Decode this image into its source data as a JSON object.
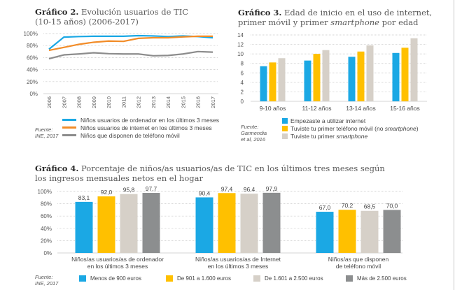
{
  "chart_data": [
    {
      "type": "line",
      "title_bold": "Gráfico 2.",
      "title": "Evolución usuarios de TIC (10-15 años) (2006-2017)",
      "title_line1": "Evolución usuarios de TIC",
      "title_line2": "(10-15 años) (2006-2017)",
      "x": [
        "2006",
        "2007",
        "2008",
        "2009",
        "2010",
        "2011",
        "2012",
        "2013",
        "2014",
        "2015",
        "2016",
        "2017"
      ],
      "yticks": [
        "0%",
        "20%",
        "40%",
        "60%",
        "80%",
        "100%"
      ],
      "ylim": [
        0,
        100
      ],
      "grid": true,
      "series": [
        {
          "name": "Niños usuarios de ordenador en los últimos 3 meses",
          "color": "#1ba8e4",
          "values": [
            74,
            94,
            95,
            95.5,
            95.5,
            95.5,
            96.5,
            96,
            95,
            96,
            95,
            93
          ]
        },
        {
          "name": "Niños usuarios de internet en los  últimos 3 meses",
          "color": "#f28c28",
          "values": [
            72,
            77,
            82,
            85.5,
            87.5,
            87,
            92,
            93,
            93,
            94.5,
            95.5,
            95.5
          ]
        },
        {
          "name": "Niños que disponen de teléfono móvil",
          "color": "#8c8c8c",
          "values": [
            58,
            64.5,
            66,
            68,
            66.5,
            66,
            66,
            63,
            63.5,
            66,
            70,
            69
          ]
        }
      ],
      "source": [
        "Fuente:",
        "INE, 2017"
      ]
    },
    {
      "type": "bar",
      "title_bold": "Gráfico 3.",
      "title": "Edad de inicio en el uso de internet, primer móvil y primer smartphone por edad",
      "title_line1": "Edad de inicio en el uso de internet,",
      "title_line2a": "primer móvil y primer ",
      "title_line2_italic": "smartphone",
      "title_line2b": " por edad",
      "categories": [
        "9-10 años",
        "11-12 años",
        "13-14 años",
        "15-16 años"
      ],
      "yticks": [
        "0",
        "2",
        "4",
        "6",
        "8",
        "10",
        "12",
        "14"
      ],
      "ylim": [
        0,
        14
      ],
      "grid": true,
      "series": [
        {
          "name": "Empezaste a utilizar internet",
          "color": "#1ba8e4",
          "values": [
            7.4,
            8.6,
            9.4,
            10.2
          ]
        },
        {
          "name": "Tuviste tu primer teléfono móvil (no smartphone)",
          "name_plain": "Tuviste tu primer teléfono móvil (no ",
          "name_italic": "smartphone",
          "name_end": ")",
          "color": "#ffc000",
          "values": [
            8.2,
            10.0,
            10.5,
            11.3
          ]
        },
        {
          "name": "Tuviste tu primer smartphone",
          "name_plain": "Tuviste tu primer ",
          "name_italic": "smartphone",
          "color": "#d6d0c8",
          "values": [
            9.1,
            10.8,
            11.8,
            13.3
          ]
        }
      ],
      "source": [
        "Fuente:",
        "Garmendia",
        "et al, 2016"
      ]
    },
    {
      "type": "bar",
      "title_bold": "Gráfico 4.",
      "title": "Porcentaje de niños/as usuarios/as de TIC en los últimos tres meses según los ingresos mensuales netos en el hogar",
      "title_line1": "Porcentaje de niños/as usuarios/as de TIC en los últimos tres meses según",
      "title_line2": "los ingresos mensuales netos en el hogar",
      "categories": [
        [
          "Niños/as usuarios/as de ordenador",
          "en los  últimos 3 meses"
        ],
        [
          "Niños/as usuarios/as de Internet",
          "en los  últimos 3 meses"
        ],
        [
          "Niños/as que disponen",
          "de teléfono móvil"
        ]
      ],
      "yticks": [
        "0%",
        "20%",
        "40%",
        "60%",
        "80%",
        "100%"
      ],
      "ylim": [
        0,
        100
      ],
      "grid": true,
      "series": [
        {
          "name": "Menos de 900 euros",
          "color": "#1ba8e4",
          "values": [
            83.1,
            90.4,
            67.0
          ],
          "labels": [
            "83,1",
            "90,4",
            "67,0"
          ]
        },
        {
          "name": "De 901 a 1.600 euros",
          "color": "#ffc000",
          "values": [
            92.0,
            97.4,
            70.2
          ],
          "labels": [
            "92,0",
            "97,4",
            "70,2"
          ]
        },
        {
          "name": "De 1.601 a 2.500 euros",
          "color": "#d6d0c8",
          "values": [
            95.8,
            96.4,
            68.5
          ],
          "labels": [
            "95,8",
            "96,4",
            "68,5"
          ]
        },
        {
          "name": "Más de 2.500 euros",
          "color": "#8c8e8f",
          "values": [
            97.7,
            97.9,
            70.0
          ],
          "labels": [
            "97,7",
            "97,9",
            "70,0"
          ]
        }
      ],
      "source": [
        "Fuente:",
        "INE, 2017"
      ]
    }
  ]
}
